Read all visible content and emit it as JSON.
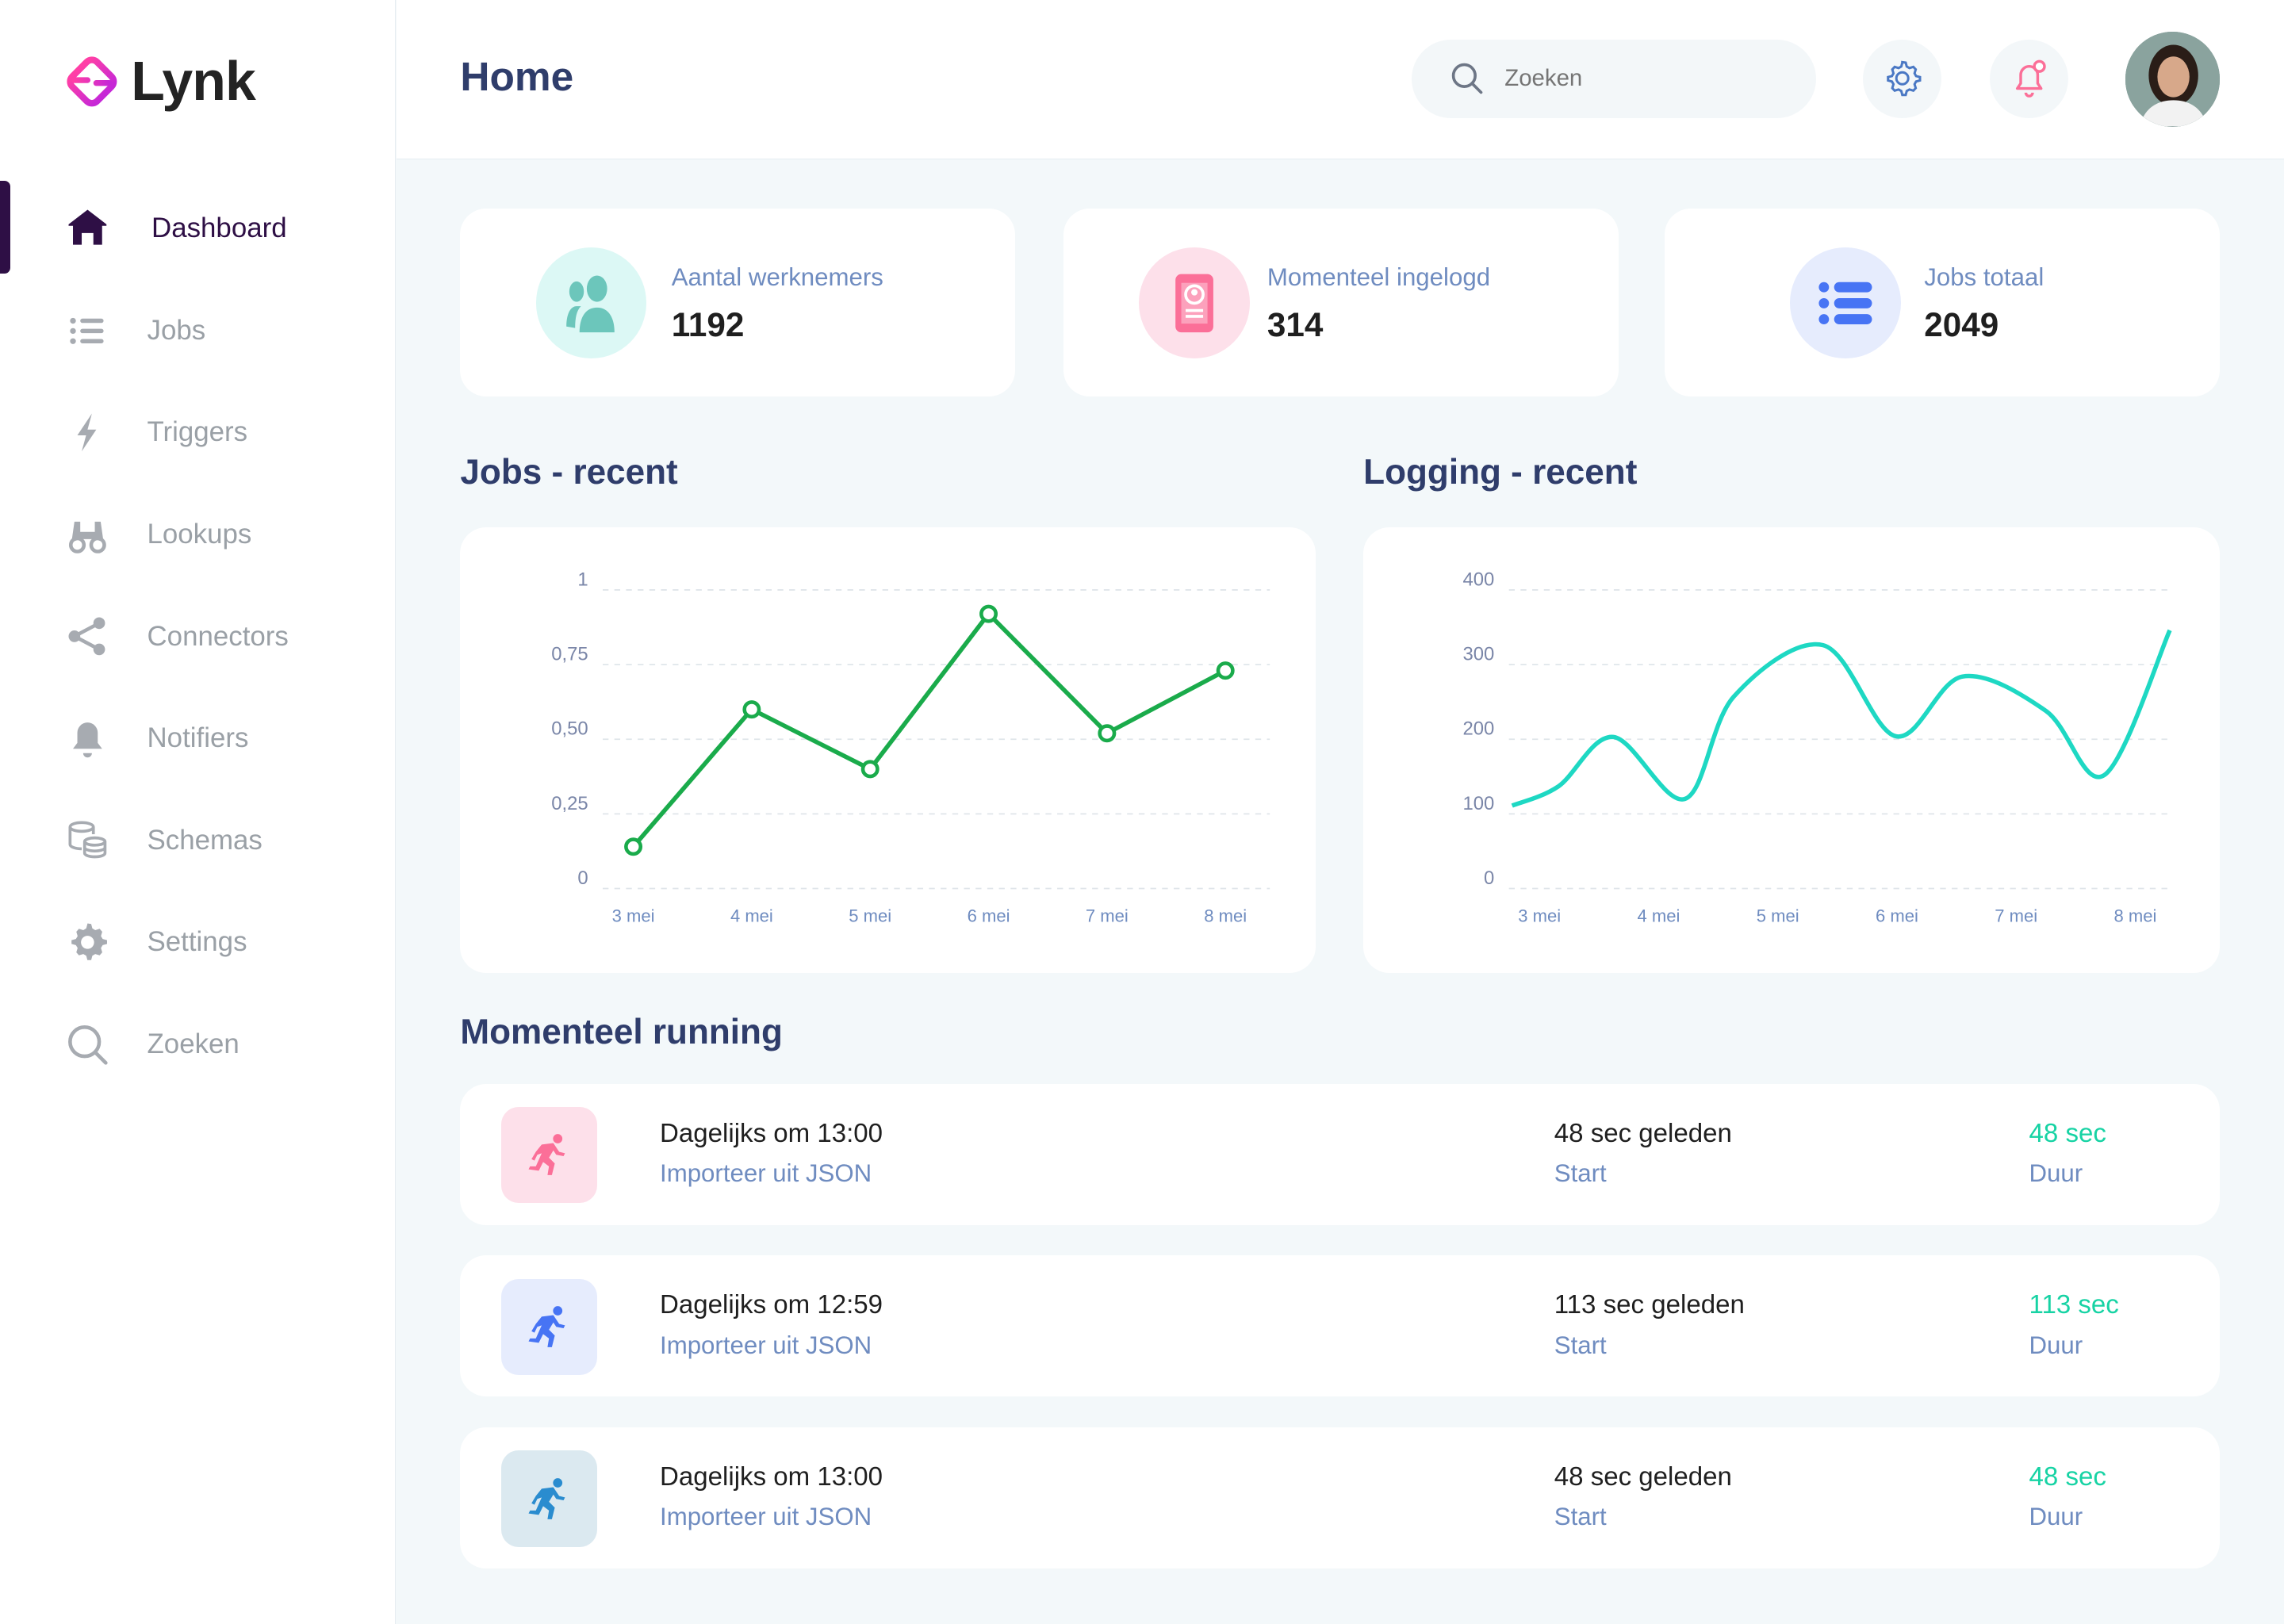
{
  "app": {
    "name": "Lynk"
  },
  "sidebar": {
    "items": [
      {
        "label": "Dashboard",
        "icon": "home-icon"
      },
      {
        "label": "Jobs",
        "icon": "list-icon"
      },
      {
        "label": "Triggers",
        "icon": "bolt-icon"
      },
      {
        "label": "Lookups",
        "icon": "binoculars-icon"
      },
      {
        "label": "Connectors",
        "icon": "share-icon"
      },
      {
        "label": "Notifiers",
        "icon": "bell-icon"
      },
      {
        "label": "Schemas",
        "icon": "database-icon"
      },
      {
        "label": "Settings",
        "icon": "gear-icon"
      },
      {
        "label": "Zoeken",
        "icon": "search-icon"
      }
    ],
    "active": "Dashboard"
  },
  "header": {
    "title": "Home",
    "search_placeholder": "Zoeken"
  },
  "stats": [
    {
      "label": "Aantal werknemers",
      "value": "1192",
      "color": "#6cc6bb",
      "bg": "#dcf8f5"
    },
    {
      "label": "Momenteel ingelogd",
      "value": "314",
      "color": "#fb6f98",
      "bg": "#fde0ea"
    },
    {
      "label": "Jobs totaal",
      "value": "2049",
      "color": "#4774f4",
      "bg": "#e6ecfd"
    }
  ],
  "sections": {
    "jobs": "Jobs - recent",
    "logging": "Logging - recent",
    "running": "Momenteel running"
  },
  "chart_data": [
    {
      "type": "line",
      "title": "Jobs - recent",
      "categories": [
        "3 mei",
        "4 mei",
        "5 mei",
        "6 mei",
        "7 mei",
        "8 mei"
      ],
      "values": [
        0.14,
        0.6,
        0.4,
        0.92,
        0.52,
        0.73
      ],
      "ylim": [
        0,
        1
      ],
      "yticks": [
        "0",
        "0,25",
        "0,50",
        "0,75",
        "1"
      ],
      "color": "#1aab4b",
      "grid": true
    },
    {
      "type": "line",
      "title": "Logging - recent",
      "categories": [
        "3 mei",
        "4 mei",
        "5 mei",
        "6 mei",
        "7 mei",
        "8 mei"
      ],
      "x": [
        -0.23,
        0.16,
        0.62,
        1.22,
        1.63,
        2.38,
        2.99,
        3.55,
        4.25,
        4.74,
        5.29
      ],
      "values": [
        111,
        137,
        203,
        120,
        257,
        326,
        204,
        284,
        238,
        152,
        346
      ],
      "ylim": [
        0,
        400
      ],
      "yticks": [
        "0",
        "100",
        "200",
        "300",
        "400"
      ],
      "color": "#1ed8c3",
      "grid": true,
      "smooth": true
    }
  ],
  "running": [
    {
      "title": "Dagelijks om 13:00",
      "subtitle": "Importeer uit JSON",
      "start": "48 sec geleden",
      "start_label": "Start",
      "duration": "48 sec",
      "duration_label": "Duur",
      "color": "#fb6f98",
      "bg": "#fde0ea"
    },
    {
      "title": "Dagelijks om 12:59",
      "subtitle": "Importeer uit JSON",
      "start": "113 sec geleden",
      "start_label": "Start",
      "duration": "113 sec",
      "duration_label": "Duur",
      "color": "#4774f4",
      "bg": "#e6ecfd"
    },
    {
      "title": "Dagelijks om 13:00",
      "subtitle": "Importeer uit JSON",
      "start": "48 sec geleden",
      "start_label": "Start",
      "duration": "48 sec",
      "duration_label": "Duur",
      "color": "#2a8ccf",
      "bg": "#dbe9f0"
    }
  ]
}
